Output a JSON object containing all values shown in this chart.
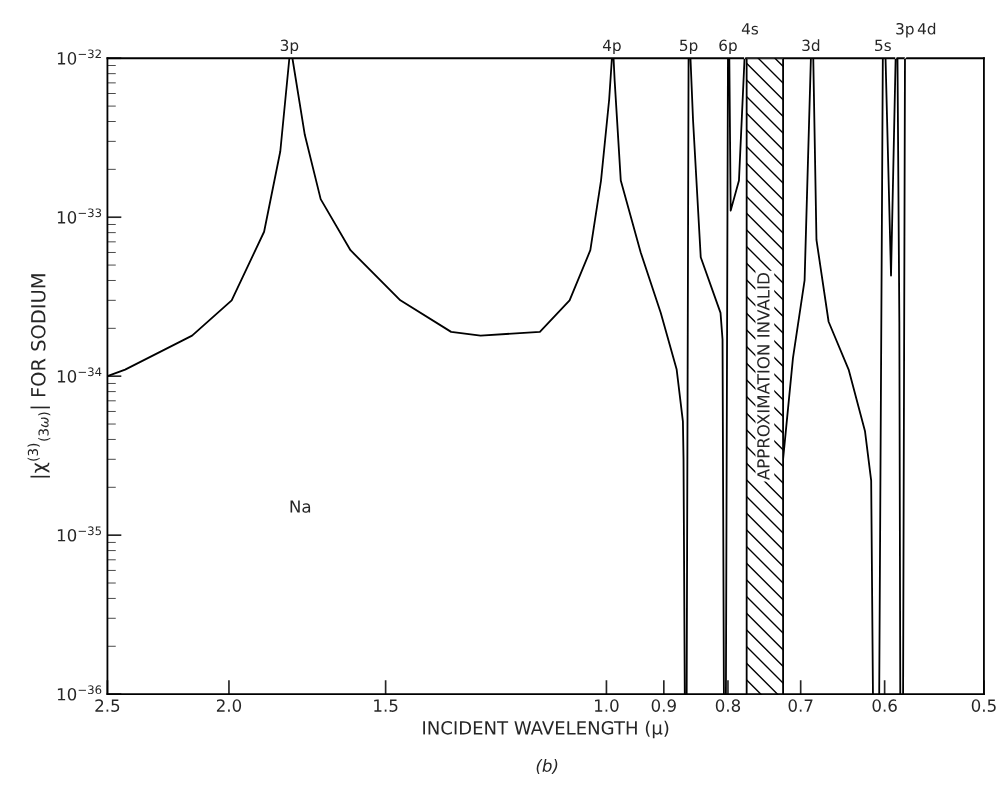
{
  "chart_data": {
    "type": "line",
    "xlabel": "INCIDENT WAVELENGTH (μ)",
    "ylabel": "|χ$^{(3)}$$_{(3ω)}$| FOR SODIUM",
    "log": "xy",
    "xlim": [
      2.5,
      0.5
    ],
    "xticks": [
      {
        "value": 2.5,
        "label": "2.5"
      },
      {
        "value": 2.0,
        "label": "2.0"
      },
      {
        "value": 1.5,
        "label": "1.5"
      },
      {
        "value": 1.0,
        "label": "1.0"
      },
      {
        "value": 0.9,
        "label": "0.9"
      },
      {
        "value": 0.8,
        "label": "0.8"
      },
      {
        "value": 0.7,
        "label": "0.7"
      },
      {
        "value": 0.6,
        "label": "0.6"
      },
      {
        "value": 0.5,
        "label": "0.5"
      }
    ],
    "ylim": [
      1e-36,
      1e-32
    ],
    "yticks": [
      {
        "value": 1e-36,
        "label": "10$^{−36}$"
      },
      {
        "value": 1e-35,
        "label": "10$^{−35}$"
      },
      {
        "value": 1e-34,
        "label": "10$^{−34}$"
      },
      {
        "value": 1e-33,
        "label": "10$^{−33}$"
      },
      {
        "value": 1e-32,
        "label": "10$^{−32}$"
      }
    ],
    "grid": false,
    "legend": false,
    "series": [
      {
        "color": "#000000",
        "x": [
          2.5,
          2.42,
          2.14,
          1.99,
          1.875,
          1.82,
          1.79,
          1.785,
          1.78,
          1.74,
          1.69,
          1.6,
          1.46,
          1.33,
          1.26,
          1.13,
          1.07,
          1.03,
          1.01,
          0.995,
          0.99,
          0.988,
          0.987,
          0.985,
          0.974,
          0.939,
          0.905,
          0.879,
          0.869,
          0.868,
          0.866,
          0.864,
          0.863,
          0.86,
          0.858,
          0.857,
          0.853,
          0.841,
          0.811,
          0.808,
          0.806,
          0.804,
          0.803,
          0.8,
          0.799,
          0.798,
          0.796,
          0.784,
          0.776,
          0.75,
          0.723,
          0.71,
          0.695,
          0.687,
          0.685,
          0.684,
          0.68,
          0.665,
          0.641,
          0.622,
          0.615,
          0.613,
          0.61,
          0.606,
          0.602,
          0.6,
          0.599,
          0.593,
          0.588,
          0.587,
          0.586,
          0.584,
          0.583,
          0.581,
          0.58,
          0.578
        ],
        "values": [
          1e-34,
          1.1e-34,
          1.8e-34,
          3e-34,
          8.1e-34,
          2.6e-33,
          1e-32,
          null,
          1e-32,
          3.3e-33,
          1.3e-33,
          6.2e-34,
          3e-34,
          1.9e-34,
          1.8e-34,
          1.9e-34,
          3e-34,
          6.2e-34,
          1.7e-33,
          5.5e-33,
          1e-32,
          null,
          1e-32,
          7.2e-33,
          1.7e-33,
          6e-34,
          2.5e-34,
          1.1e-34,
          5.2e-35,
          3e-35,
          1e-36,
          null,
          1e-36,
          1e-32,
          null,
          1e-32,
          4.1e-33,
          5.6e-34,
          2.5e-34,
          1.7e-34,
          1e-36,
          null,
          1e-36,
          1e-32,
          null,
          1e-32,
          1.1e-33,
          1.7e-33,
          1e-32,
          null,
          3e-35,
          1.3e-34,
          4e-34,
          1e-32,
          null,
          1e-32,
          7.2e-34,
          2.2e-34,
          1.1e-34,
          4.5e-35,
          2.2e-35,
          1e-36,
          null,
          1e-36,
          1e-32,
          null,
          1e-32,
          4.3e-34,
          1e-32,
          null,
          1e-32,
          2.2e-34,
          1e-36,
          null,
          1e-36,
          1e-32
        ]
      }
    ],
    "bands": [
      {
        "axis": "x",
        "from": 0.773,
        "to": 0.723,
        "label": "APPROXIMATION INVALID",
        "color": "#000000"
      }
    ],
    "annotations": [
      {
        "text": "3p",
        "x": 1.79,
        "y": 1e-32
      },
      {
        "text": "4p",
        "x": 0.99,
        "y": 1e-32
      },
      {
        "text": "5p",
        "x": 0.86,
        "y": 1e-32
      },
      {
        "text": "6p",
        "x": 0.8,
        "y": 1e-32
      },
      {
        "text": "4s",
        "x": 0.776,
        "y": 1e-32
      },
      {
        "text": "3d",
        "x": 0.687,
        "y": 1e-32
      },
      {
        "text": "5s",
        "x": 0.602,
        "y": 1e-32
      },
      {
        "text": "3p",
        "x": 0.588,
        "y": 1e-32
      },
      {
        "text": "4d",
        "x": 0.578,
        "y": 1e-32
      },
      "Na",
      "(b)"
    ]
  }
}
